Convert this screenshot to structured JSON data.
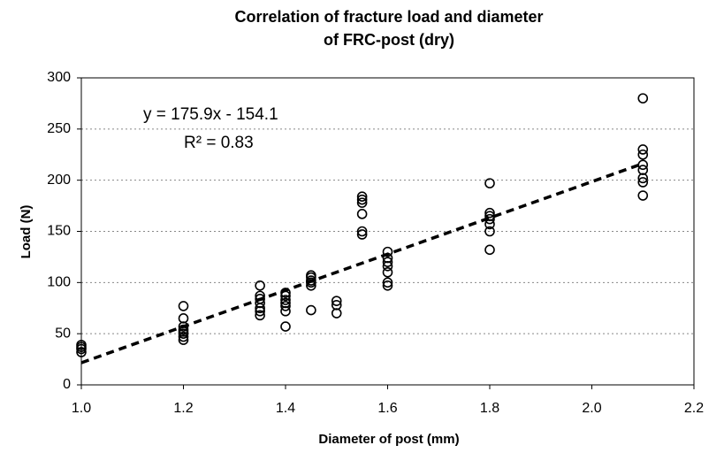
{
  "chart_data": {
    "type": "scatter",
    "title": [
      "Correlation of fracture load and diameter",
      "of FRC-post (dry)"
    ],
    "x_label": "Diameter of post (mm)",
    "y_label": "Load (N)",
    "annotations": [
      "y = 175.9x - 154.1",
      "R² = 0.83"
    ],
    "x": [
      1.0,
      1.0,
      1.0,
      1.0,
      1.2,
      1.2,
      1.2,
      1.2,
      1.2,
      1.2,
      1.2,
      1.2,
      1.35,
      1.35,
      1.35,
      1.35,
      1.35,
      1.35,
      1.35,
      1.4,
      1.4,
      1.4,
      1.4,
      1.4,
      1.4,
      1.4,
      1.45,
      1.45,
      1.45,
      1.45,
      1.45,
      1.45,
      1.5,
      1.5,
      1.5,
      1.55,
      1.55,
      1.55,
      1.55,
      1.55,
      1.55,
      1.6,
      1.6,
      1.6,
      1.6,
      1.6,
      1.6,
      1.6,
      1.8,
      1.8,
      1.8,
      1.8,
      1.8,
      1.8,
      1.8,
      2.1,
      2.1,
      2.1,
      2.1,
      2.1,
      2.1,
      2.1,
      2.1
    ],
    "values": [
      32,
      35,
      37,
      39,
      77,
      65,
      57,
      54,
      52,
      50,
      47,
      44,
      97,
      87,
      84,
      80,
      75,
      72,
      68,
      90,
      87,
      83,
      80,
      77,
      72,
      57,
      107,
      105,
      102,
      100,
      97,
      73,
      82,
      78,
      70,
      184,
      181,
      178,
      167,
      150,
      147,
      130,
      124,
      120,
      116,
      110,
      100,
      97,
      197,
      168,
      165,
      162,
      157,
      150,
      132,
      280,
      230,
      225,
      215,
      210,
      202,
      198,
      185
    ],
    "color": "#000000",
    "trendline": true,
    "xlim": [
      1,
      2.2
    ],
    "xticks": [
      {
        "value": 1,
        "label": "1.0"
      },
      1.2,
      1.4,
      1.6,
      1.8,
      {
        "value": 2,
        "label": "2.0"
      },
      2.2
    ],
    "ylim": [
      0,
      300
    ],
    "yticks": [
      0,
      50,
      100,
      150,
      200,
      250,
      300
    ],
    "grid": true
  }
}
